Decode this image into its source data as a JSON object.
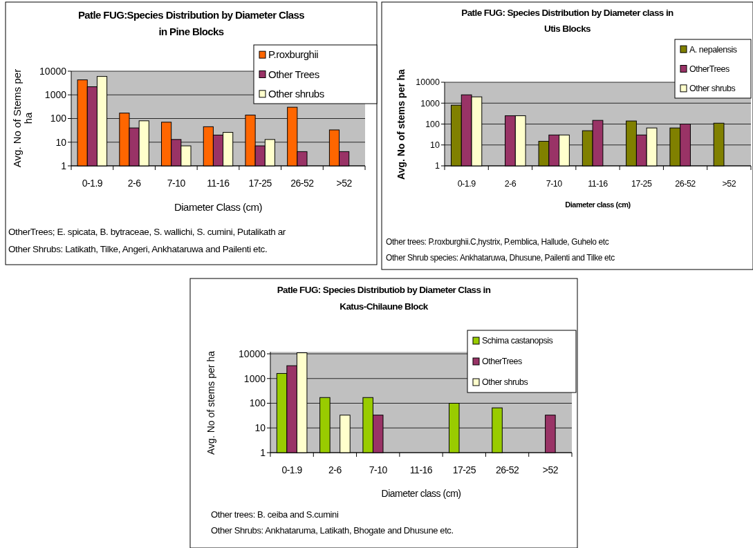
{
  "chart_data": [
    {
      "type": "bar",
      "title": "Patle FUG:Species Distribution by Diameter Class\nin Pine Blocks",
      "xlabel": "Diameter Class (cm)",
      "ylabel": "Avg. No of Stems per\nha",
      "categories": [
        "0-1.9",
        "2-6",
        "7-10",
        "11-16",
        "17-25",
        "26-52",
        ">52"
      ],
      "series": [
        {
          "name": "P.roxburghii",
          "color": "#ff6600",
          "values": [
            4300,
            170,
            70,
            45,
            140,
            300,
            33
          ]
        },
        {
          "name": "Other Trees",
          "color": "#993366",
          "values": [
            2200,
            40,
            13,
            20,
            7,
            4,
            4
          ]
        },
        {
          "name": "Other shrubs",
          "color": "#ffffcc",
          "values": [
            6000,
            80,
            7,
            26,
            13,
            null,
            null
          ]
        }
      ],
      "log": "y",
      "ylim": [
        1,
        10000
      ],
      "yticks": [
        1,
        10,
        100,
        1000,
        10000
      ],
      "grid": "y",
      "legend": "top right",
      "annotations": [
        "OtherTrees; E. spicata, B. bytraceae,  S. wallichi, S. cumini, Putalikath ar",
        "Other Shrubs: Latikath, Tilke, Angeri, Ankhataruwa and Pailenti etc."
      ]
    },
    {
      "type": "bar",
      "title": "Patle FUG: Species Distribution by Diameter class in\nUtis Blocks",
      "xlabel": "Diameter class (cm)",
      "ylabel": "Avg. No of stems per ha",
      "categories": [
        "0-1.9",
        "2-6",
        "7-10",
        "11-16",
        "17-25",
        "26-52",
        ">52"
      ],
      "series": [
        {
          "name": "A. nepalensis",
          "color": "#808000",
          "values": [
            800,
            null,
            15,
            48,
            140,
            65,
            110
          ]
        },
        {
          "name": "OtherTrees",
          "color": "#993366",
          "values": [
            2500,
            250,
            30,
            150,
            30,
            100,
            null
          ]
        },
        {
          "name": "Other shrubs",
          "color": "#ffffcc",
          "values": [
            2000,
            250,
            30,
            null,
            65,
            null,
            null
          ]
        }
      ],
      "log": "y",
      "ylim": [
        1,
        10000
      ],
      "yticks": [
        1,
        10,
        100,
        1000,
        10000
      ],
      "grid": "y",
      "legend": "top right",
      "annotations": [
        "Other trees: P.roxburghii.C,hystrix, P.emblica, Hallude, Guhelo etc",
        "Other Shrub species: Ankhataruwa, Dhusune, Pailenti and Tilke etc"
      ]
    },
    {
      "type": "bar",
      "title": "Patle FUG: Species Distributiob by Diameter Class in\nKatus-Chilaune Block",
      "xlabel": "Diameter class (cm)",
      "ylabel": "Avg. No of stems per ha",
      "categories": [
        "0-1.9",
        "2-6",
        "7-10",
        "11-16",
        "17-25",
        "26-52",
        ">52"
      ],
      "series": [
        {
          "name": "Schima castanopsis",
          "color": "#99cc00",
          "values": [
            1600,
            170,
            170,
            null,
            100,
            65,
            null
          ]
        },
        {
          "name": "OtherTrees",
          "color": "#993366",
          "values": [
            3300,
            null,
            33,
            null,
            null,
            null,
            33
          ]
        },
        {
          "name": "Other shrubs",
          "color": "#ffffcc",
          "values": [
            11000,
            33,
            null,
            null,
            null,
            null,
            null
          ]
        }
      ],
      "log": "y",
      "ylim": [
        1,
        12000
      ],
      "yticks": [
        1,
        10,
        100,
        1000,
        10000
      ],
      "grid": "y",
      "legend": "top right",
      "annotations": [
        "Other trees: B. ceiba and S.cumini",
        "Other Shrubs: Ankhataruma, Latikath, Bhogate and Dhusune etc."
      ]
    }
  ]
}
